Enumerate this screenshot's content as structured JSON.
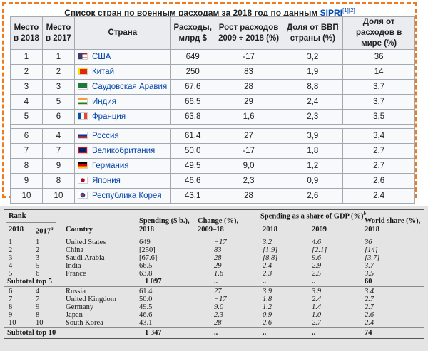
{
  "wiki": {
    "caption_text": "Список стран по военным расходам за 2018 год по данным",
    "caption_source": "SIPRI",
    "caption_refs": "[1][2]",
    "headers": [
      "Место в 2018",
      "Место в 2017",
      "Страна",
      "Расходы, млрд $",
      "Рост расходов 2009 ÷ 2018 (%)",
      "Доля от ВВП страны (%)",
      "Доля от расходов в мире (%)"
    ],
    "rows": [
      {
        "r18": "1",
        "r17": "1",
        "country": "США",
        "flag": "us",
        "spend": "649",
        "growth": "-17",
        "gdp": "3,2",
        "world": "36"
      },
      {
        "r18": "2",
        "r17": "2",
        "country": "Китай",
        "flag": "cn",
        "spend": "250",
        "growth": "83",
        "gdp": "1,9",
        "world": "14"
      },
      {
        "r18": "3",
        "r17": "3",
        "country": "Саудовская Аравия",
        "flag": "sa",
        "spend": "67,6",
        "growth": "28",
        "gdp": "8,8",
        "world": "3,7"
      },
      {
        "r18": "4",
        "r17": "5",
        "country": "Индия",
        "flag": "in",
        "spend": "66,5",
        "growth": "29",
        "gdp": "2,4",
        "world": "3,7"
      },
      {
        "r18": "5",
        "r17": "6",
        "country": "Франция",
        "flag": "fr",
        "spend": "63,8",
        "growth": "1,6",
        "gdp": "2,3",
        "world": "3,5"
      },
      {
        "r18": "6",
        "r17": "4",
        "country": "Россия",
        "flag": "ru",
        "spend": "61,4",
        "growth": "27",
        "gdp": "3,9",
        "world": "3,4"
      },
      {
        "r18": "7",
        "r17": "7",
        "country": "Великобритания",
        "flag": "gb",
        "spend": "50,0",
        "growth": "-17",
        "gdp": "1,8",
        "world": "2,7"
      },
      {
        "r18": "8",
        "r17": "9",
        "country": "Германия",
        "flag": "de",
        "spend": "49,5",
        "growth": "9,0",
        "gdp": "1,2",
        "world": "2,7"
      },
      {
        "r18": "9",
        "r17": "8",
        "country": "Япония",
        "flag": "jp",
        "spend": "46,6",
        "growth": "2,3",
        "gdp": "0,9",
        "world": "2,6"
      },
      {
        "r18": "10",
        "r17": "10",
        "country": "Республика Корея",
        "flag": "kr",
        "spend": "43,1",
        "growth": "28",
        "gdp": "2,6",
        "world": "2,4"
      }
    ]
  },
  "sipri": {
    "rank_label": "Rank",
    "col_2018": "2018",
    "col_2017": "2017",
    "col_2017_note": "a",
    "country_label": "Country",
    "spending_label": "Spending ($ b.),",
    "spending_year": "2018",
    "change_label": "Change (%),",
    "change_years": "2009–18",
    "gdp_share_label": "Spending as a share of GDP (%)",
    "gdp_share_note": "b",
    "gdp_2018": "2018",
    "gdp_2009": "2009",
    "world_label": "World share (%),",
    "world_year": "2018",
    "rows": [
      {
        "r18": "1",
        "r17": "1",
        "country": "United States",
        "spend": "649",
        "change": "−17",
        "g18": "3.2",
        "g09": "4.6",
        "world": "36"
      },
      {
        "r18": "2",
        "r17": "2",
        "country": "China",
        "spend": "[250]",
        "change": "83",
        "g18": "[1.9]",
        "g09": "[2.1]",
        "world": "[14]"
      },
      {
        "r18": "3",
        "r17": "3",
        "country": "Saudi Arabia",
        "spend": "[67.6]",
        "change": "28",
        "g18": "[8.8]",
        "g09": "9.6",
        "world": "[3.7]"
      },
      {
        "r18": "4",
        "r17": "5",
        "country": "India",
        "spend": "66.5",
        "change": "29",
        "g18": "2.4",
        "g09": "2.9",
        "world": "3.7"
      },
      {
        "r18": "5",
        "r17": "6",
        "country": "France",
        "spend": "63.8",
        "change": "1.6",
        "g18": "2.3",
        "g09": "2.5",
        "world": "3.5"
      }
    ],
    "subtotal5": {
      "label": "Subtotal top 5",
      "spend": "1 097",
      "change": "..",
      "g18": "..",
      "g09": "..",
      "world": "60"
    },
    "rows2": [
      {
        "r18": "6",
        "r17": "4",
        "country": "Russia",
        "spend": "61.4",
        "change": "27",
        "g18": "3.9",
        "g09": "3.9",
        "world": "3.4"
      },
      {
        "r18": "7",
        "r17": "7",
        "country": "United Kingdom",
        "spend": "50.0",
        "change": "−17",
        "g18": "1.8",
        "g09": "2.4",
        "world": "2.7"
      },
      {
        "r18": "8",
        "r17": "9",
        "country": "Germany",
        "spend": "49.5",
        "change": "9.0",
        "g18": "1.2",
        "g09": "1.4",
        "world": "2.7"
      },
      {
        "r18": "9",
        "r17": "8",
        "country": "Japan",
        "spend": "46.6",
        "change": "2.3",
        "g18": "0.9",
        "g09": "1.0",
        "world": "2.6"
      },
      {
        "r18": "10",
        "r17": "10",
        "country": "South Korea",
        "spend": "43.1",
        "change": "28",
        "g18": "2.6",
        "g09": "2.7",
        "world": "2.4"
      }
    ],
    "subtotal10": {
      "label": "Subtotal top 10",
      "spend": "1 347",
      "change": "..",
      "g18": "..",
      "g09": "..",
      "world": "74"
    }
  }
}
